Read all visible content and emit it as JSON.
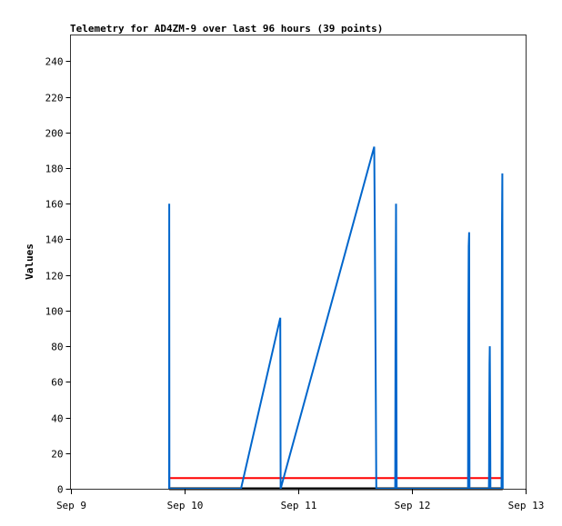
{
  "chart_data": {
    "type": "line",
    "title": "Telemetry for AD4ZM-9 over last 96 hours (39 points)",
    "xlabel": "",
    "ylabel": "Values",
    "xlim": [
      "Sep 9 00:00",
      "Sep 13 00:00"
    ],
    "ylim": [
      0,
      255
    ],
    "x_ticks": [
      "Sep 9",
      "Sep 10",
      "Sep 11",
      "Sep 12",
      "Sep 13"
    ],
    "y_ticks": [
      0,
      20,
      40,
      60,
      80,
      100,
      120,
      140,
      160,
      180,
      200,
      220,
      240
    ],
    "grid": false,
    "legend": "none",
    "series": [
      {
        "color": "#000000",
        "points": [
          [
            "Sep 9 20:50",
            0
          ],
          [
            "Sep 12 19:10",
            0
          ]
        ]
      },
      {
        "color": "#ff0000",
        "points": [
          [
            "Sep 9 20:50",
            6
          ],
          [
            "Sep 12 19:10",
            6
          ]
        ]
      },
      {
        "color": "#0066cc",
        "points": [
          [
            "Sep 9 20:49",
            0
          ],
          [
            "Sep 9 20:50",
            160
          ],
          [
            "Sep 9 20:52",
            0
          ],
          [
            "Sep 10 11:58",
            0
          ],
          [
            "Sep 10 20:15",
            96
          ],
          [
            "Sep 10 20:20",
            0
          ],
          [
            "Sep 11 16:04",
            192
          ],
          [
            "Sep 11 16:12",
            144
          ],
          [
            "Sep 11 16:25",
            48
          ],
          [
            "Sep 11 16:30",
            0
          ],
          [
            "Sep 11 20:30",
            0
          ],
          [
            "Sep 11 20:33",
            80
          ],
          [
            "Sep 11 20:40",
            160
          ],
          [
            "Sep 11 20:44",
            80
          ],
          [
            "Sep 11 20:48",
            0
          ],
          [
            "Sep 12 11:52",
            0
          ],
          [
            "Sep 12 11:54",
            80
          ],
          [
            "Sep 12 12:00",
            136
          ],
          [
            "Sep 12 12:05",
            144
          ],
          [
            "Sep 12 12:10",
            0
          ],
          [
            "Sep 12 16:15",
            0
          ],
          [
            "Sep 12 16:17",
            10
          ],
          [
            "Sep 12 16:19",
            30
          ],
          [
            "Sep 12 16:21",
            50
          ],
          [
            "Sep 12 16:23",
            70
          ],
          [
            "Sep 12 16:26",
            80
          ],
          [
            "Sep 12 16:31",
            40
          ],
          [
            "Sep 12 16:35",
            0
          ],
          [
            "Sep 12 18:55",
            0
          ],
          [
            "Sep 12 18:57",
            30
          ],
          [
            "Sep 12 18:59",
            88
          ],
          [
            "Sep 12 19:01",
            147
          ],
          [
            "Sep 12 19:05",
            177
          ],
          [
            "Sep 12 19:10",
            0
          ]
        ]
      }
    ]
  }
}
